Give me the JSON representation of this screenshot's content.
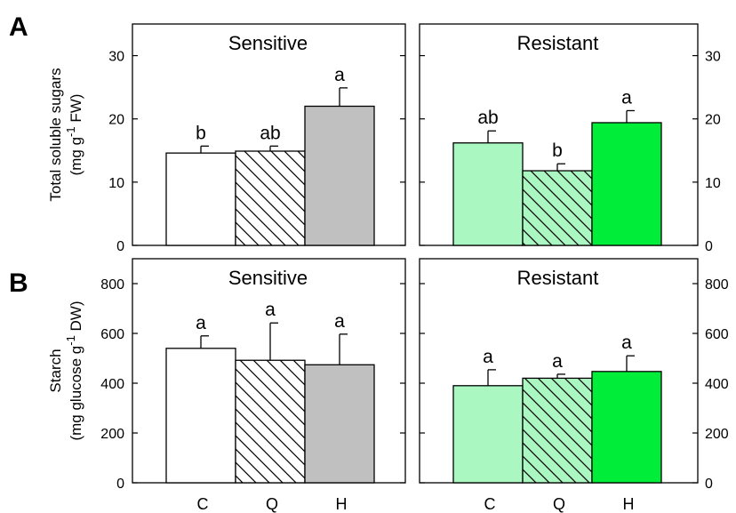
{
  "chart_data": [
    {
      "type": "bar",
      "panel": "A",
      "ylabel_line1": "Total soluble sugars",
      "ylabel_line2_prefix": "(mg g",
      "ylabel_line2_sup": "-1",
      "ylabel_line2_suffix": " FW)",
      "ylim": [
        0,
        35
      ],
      "yticks": [
        0,
        10,
        20,
        30
      ],
      "categories": [
        "C",
        "Q",
        "H"
      ],
      "subplots": [
        {
          "title": "Sensitive",
          "values": [
            14.6,
            14.9,
            22.0
          ],
          "errors": [
            1.1,
            0.8,
            2.9
          ],
          "letters": [
            "b",
            "ab",
            "a"
          ],
          "fills": [
            "#ffffff",
            "hatch-white",
            "#c0c0c0"
          ]
        },
        {
          "title": "Resistant",
          "values": [
            16.2,
            11.8,
            19.4
          ],
          "errors": [
            1.9,
            1.1,
            1.9
          ],
          "letters": [
            "ab",
            "b",
            "a"
          ],
          "fills": [
            "#aaf7c2",
            "hatch-green",
            "#00ee3a"
          ]
        }
      ]
    },
    {
      "type": "bar",
      "panel": "B",
      "ylabel_line1": "Starch",
      "ylabel_line2_prefix": "(mg glucose g",
      "ylabel_line2_sup": "-1",
      "ylabel_line2_suffix": " DW)",
      "ylim": [
        0,
        900
      ],
      "yticks": [
        0,
        200,
        400,
        600,
        800
      ],
      "categories": [
        "C",
        "Q",
        "H"
      ],
      "subplots": [
        {
          "title": "Sensitive",
          "values": [
            540,
            492,
            474
          ],
          "errors": [
            50,
            150,
            123
          ],
          "letters": [
            "a",
            "a",
            "a"
          ],
          "fills": [
            "#ffffff",
            "hatch-white",
            "#c0c0c0"
          ]
        },
        {
          "title": "Resistant",
          "values": [
            390,
            420,
            447
          ],
          "errors": [
            64,
            16,
            63
          ],
          "letters": [
            "a",
            "a",
            "a"
          ],
          "fills": [
            "#aaf7c2",
            "hatch-green",
            "#00ee3a"
          ]
        }
      ]
    }
  ]
}
